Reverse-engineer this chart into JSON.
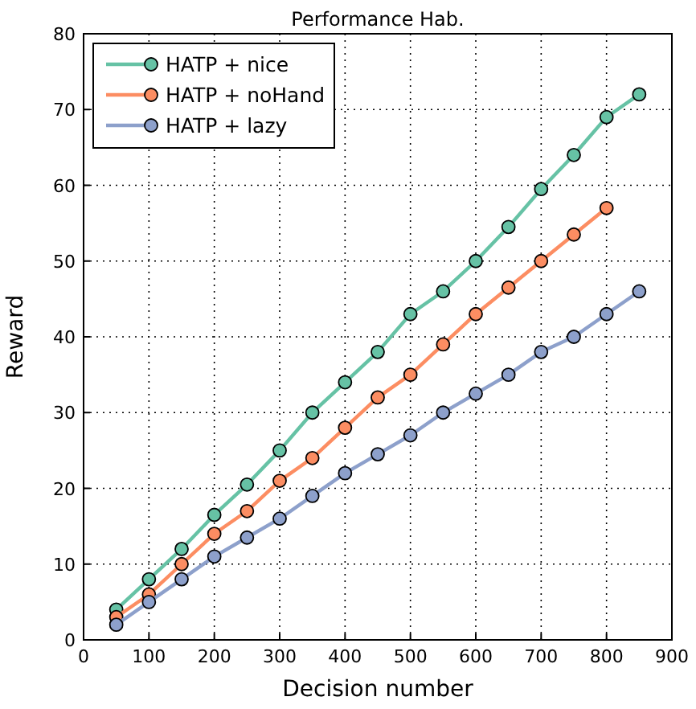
{
  "chart_data": {
    "type": "line",
    "title": "Performance Hab.",
    "xlabel": "Decision number",
    "ylabel": "Reward",
    "xlim": [
      0,
      900
    ],
    "xticks": [
      0,
      100,
      200,
      300,
      400,
      500,
      600,
      700,
      800,
      900
    ],
    "ylim": [
      0,
      80
    ],
    "yticks": [
      0,
      10,
      20,
      30,
      40,
      50,
      60,
      70,
      80
    ],
    "grid": true,
    "legend": "top left",
    "marker": "circle",
    "x": [
      50,
      100,
      150,
      200,
      250,
      300,
      350,
      400,
      450,
      500,
      550,
      600,
      650,
      700,
      750,
      800,
      850
    ],
    "series": [
      {
        "name": "HATP + nice",
        "color": "#66c2a5",
        "values": [
          4,
          8,
          12,
          16.5,
          20.5,
          25,
          30,
          34,
          38,
          43,
          46,
          50,
          54.5,
          59.5,
          64,
          69,
          72
        ]
      },
      {
        "name": "HATP + noHand",
        "color": "#fc8d62",
        "values": [
          3,
          6,
          10,
          14,
          17,
          21,
          24,
          28,
          32,
          35,
          39,
          43,
          46.5,
          50,
          53.5,
          57,
          null
        ]
      },
      {
        "name": "HATP + lazy",
        "color": "#8da0cb",
        "values": [
          2,
          5,
          8,
          11,
          13.5,
          16,
          19,
          22,
          24.5,
          27,
          30,
          32.5,
          35,
          38,
          40,
          43,
          46
        ]
      }
    ]
  }
}
